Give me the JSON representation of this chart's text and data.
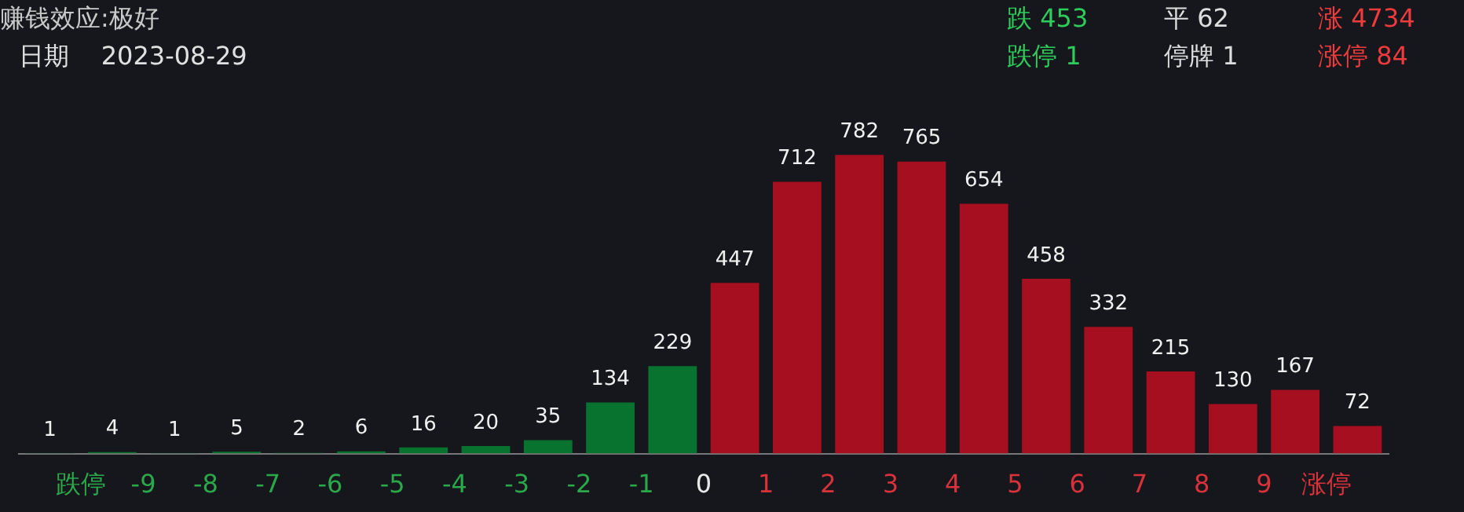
{
  "chart_data": {
    "type": "bar",
    "title": "赚钱效应:极好",
    "subtitle": "日期    2023-08-29",
    "annotations": [
      "跌 453",
      "平 62",
      "涨 4734",
      "跌停 1",
      "停牌 1",
      "涨停 84"
    ],
    "x": [
      -10.5,
      -9.5,
      -8.5,
      -7.5,
      -6.5,
      -5.5,
      -4.5,
      -3.5,
      -2.5,
      -1.5,
      -0.5,
      0.5,
      1.5,
      2.5,
      3.5,
      4.5,
      5.5,
      6.5,
      7.5,
      8.5,
      9.5,
      10.5
    ],
    "values": [
      1,
      4,
      1,
      5,
      2,
      6,
      16,
      20,
      35,
      134,
      229,
      447,
      712,
      782,
      765,
      654,
      458,
      332,
      215,
      130,
      167,
      72
    ],
    "colors": [
      "#08722f",
      "#08722f",
      "#08722f",
      "#08722f",
      "#08722f",
      "#08722f",
      "#08722f",
      "#08722f",
      "#08722f",
      "#08722f",
      "#08722f",
      "#a50f1f",
      "#a50f1f",
      "#a50f1f",
      "#a50f1f",
      "#a50f1f",
      "#a50f1f",
      "#a50f1f",
      "#a50f1f",
      "#a50f1f",
      "#a50f1f",
      "#a50f1f"
    ],
    "xlim": [
      -11,
      11
    ],
    "xticks": [
      {
        "value": -10,
        "label": "跌停"
      },
      -9,
      -8,
      -7,
      -6,
      -5,
      -4,
      -3,
      -2,
      -1,
      0,
      1,
      2,
      3,
      4,
      5,
      6,
      7,
      8,
      9,
      {
        "value": 10,
        "label": "涨停"
      }
    ],
    "data_labels": true
  }
}
